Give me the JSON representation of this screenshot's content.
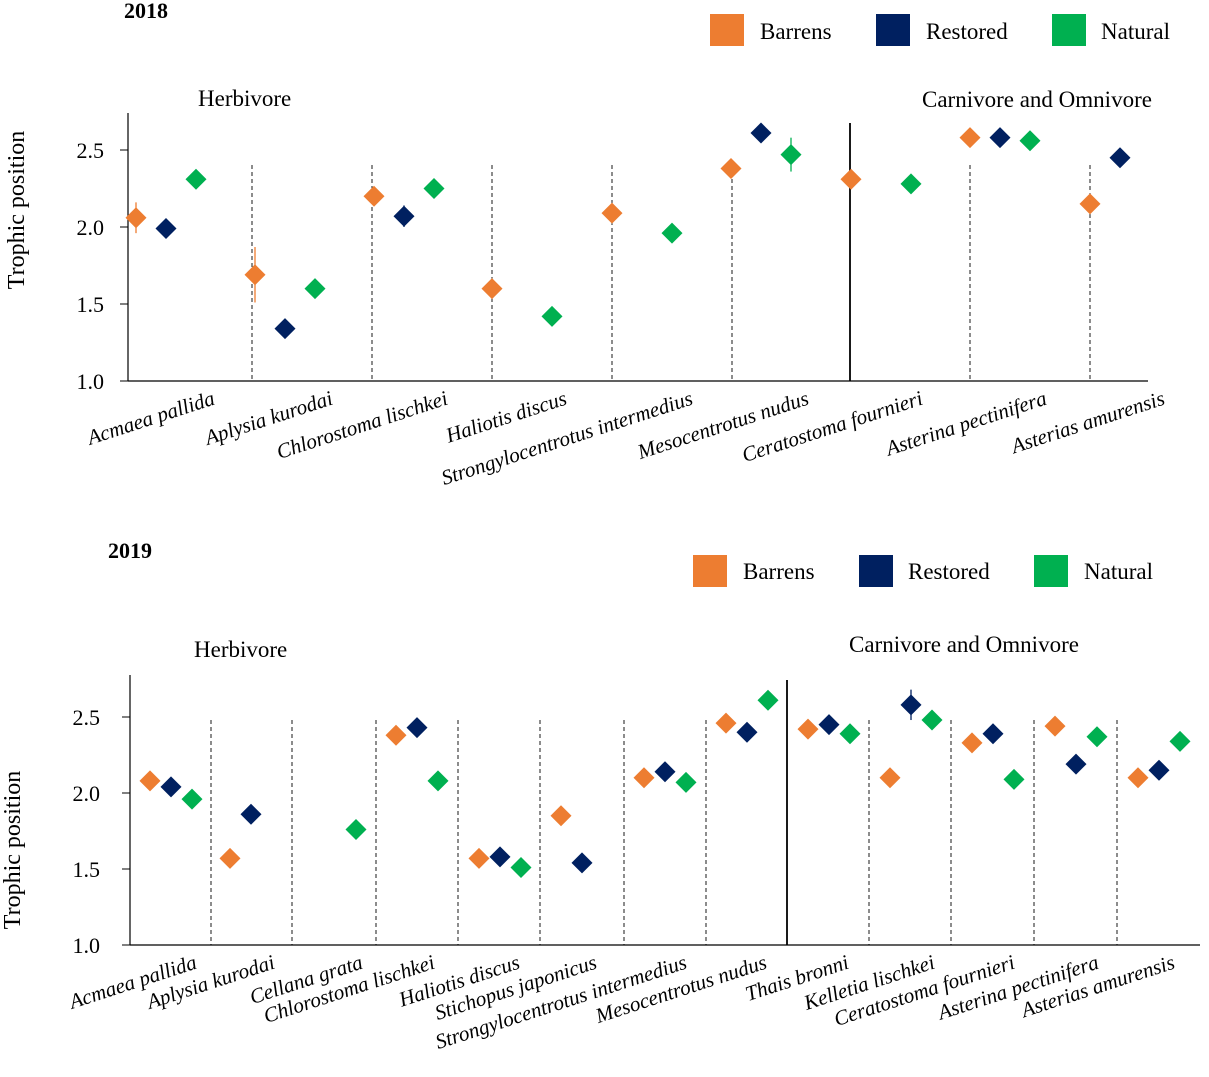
{
  "colors": {
    "Barrens": "#ed7d31",
    "Restored": "#002060",
    "Natural": "#00b050"
  },
  "legend": {
    "barrens": "Barrens",
    "restored": "Restored",
    "natural": "Natural"
  },
  "axis": {
    "ylabel": "Trophic position",
    "yticks": [
      "1.0",
      "1.5",
      "2.0",
      "2.5"
    ]
  },
  "chart_data": [
    {
      "type": "scatter",
      "title": "2018",
      "ylabel": "Trophic position",
      "ylim": [
        1.0,
        2.8
      ],
      "yticks": [
        1.0,
        1.5,
        2.0,
        2.5
      ],
      "series_names": [
        "Barrens",
        "Restored",
        "Natural"
      ],
      "groups": [
        {
          "label": "Herbivore",
          "start": 0,
          "end": 6
        },
        {
          "label": "Carnivore and Omnivore",
          "start": 6,
          "end": 9
        }
      ],
      "categories": [
        "Acmaea pallida",
        "Aplysia kurodai",
        "Chlorostoma lischkei",
        "Haliotis discus",
        "Strongylocentrotus intermedius",
        "Mesocentrotus nudus",
        "Ceratostoma fournieri",
        "Asterina pectinifera",
        "Asterias amurensis"
      ],
      "values": [
        [
          2.06,
          1.99,
          2.31
        ],
        [
          1.69,
          1.34,
          1.6
        ],
        [
          2.2,
          2.07,
          2.25
        ],
        [
          1.6,
          null,
          1.42
        ],
        [
          2.09,
          null,
          1.96
        ],
        [
          2.38,
          2.61,
          2.47
        ],
        [
          2.31,
          null,
          2.28
        ],
        [
          2.58,
          2.58,
          2.56
        ],
        [
          2.15,
          2.45,
          null
        ]
      ],
      "errors": [
        [
          0.1,
          0,
          0
        ],
        [
          0.18,
          0,
          0
        ],
        [
          0,
          0.07,
          0
        ],
        [
          0,
          0,
          0
        ],
        [
          0,
          0,
          0
        ],
        [
          0,
          0,
          0.11
        ],
        [
          0,
          0,
          0
        ],
        [
          0,
          0,
          0
        ],
        [
          0,
          0,
          0
        ]
      ]
    },
    {
      "type": "scatter",
      "title": "2019",
      "ylabel": "Trophic position",
      "ylim": [
        1.0,
        2.8
      ],
      "yticks": [
        1.0,
        1.5,
        2.0,
        2.5
      ],
      "series_names": [
        "Barrens",
        "Restored",
        "Natural"
      ],
      "groups": [
        {
          "label": "Herbivore",
          "start": 0,
          "end": 8
        },
        {
          "label": "Carnivore and Omnivore",
          "start": 8,
          "end": 13
        }
      ],
      "categories": [
        "Acmaea pallida",
        "Aplysia kurodai",
        "Cellana grata",
        "Chlorostoma lischkei",
        "Haliotis discus",
        "Stichopus japonicus",
        "Strongylocentrotus intermedius",
        "Mesocentrotus nudus",
        "Thais bronni",
        "Kelletia lischkei",
        "Ceratostoma fournieri",
        "Asterina pectinifera",
        "Asterias amurensis"
      ],
      "values": [
        [
          2.08,
          2.04,
          1.96
        ],
        [
          1.57,
          1.86,
          null
        ],
        [
          null,
          null,
          1.76
        ],
        [
          2.38,
          2.43,
          2.08
        ],
        [
          1.57,
          1.58,
          1.51
        ],
        [
          1.85,
          1.54,
          null
        ],
        [
          2.1,
          2.14,
          2.07
        ],
        [
          2.46,
          2.4,
          2.61
        ],
        [
          2.42,
          2.45,
          2.39
        ],
        [
          2.1,
          2.58,
          2.48
        ],
        [
          2.33,
          2.39,
          2.09
        ],
        [
          2.44,
          2.19,
          2.37
        ],
        [
          2.1,
          2.15,
          2.34
        ]
      ],
      "errors": [
        [
          0,
          0,
          0
        ],
        [
          0,
          0,
          0
        ],
        [
          0,
          0,
          0
        ],
        [
          0,
          0,
          0
        ],
        [
          0,
          0,
          0
        ],
        [
          0,
          0,
          0
        ],
        [
          0,
          0,
          0
        ],
        [
          0,
          0,
          0
        ],
        [
          0,
          0,
          0
        ],
        [
          0,
          0.1,
          0
        ],
        [
          0,
          0,
          0
        ],
        [
          0,
          0,
          0
        ],
        [
          0,
          0,
          0
        ]
      ]
    }
  ]
}
